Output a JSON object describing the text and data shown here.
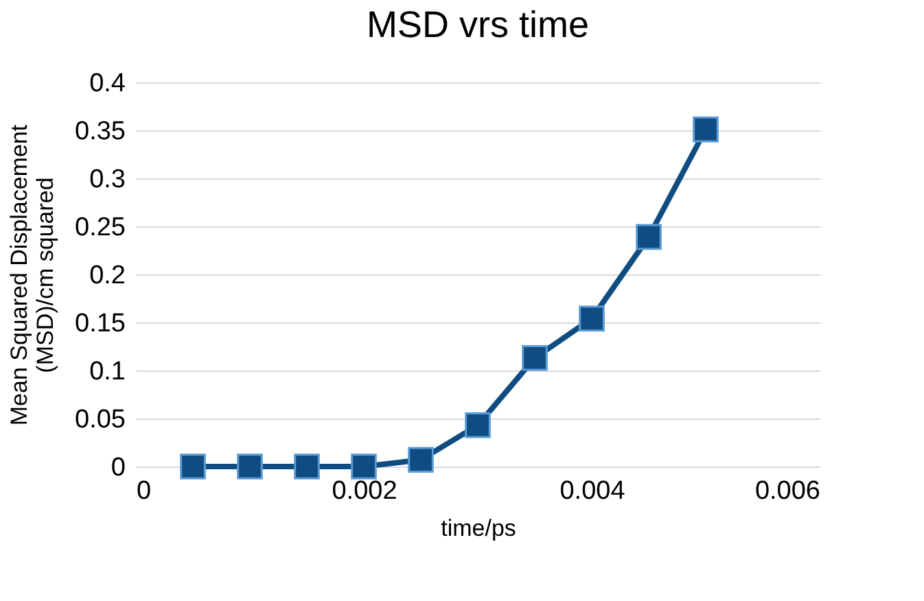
{
  "chart_data": {
    "type": "line",
    "title": "MSD vrs time",
    "xlabel": "time/ps",
    "ylabel": "Mean Squared Displacement\n(MSD)/cm squared",
    "x": [
      0.0005,
      0.001,
      0.0015,
      0.002,
      0.0025,
      0.003,
      0.0035,
      0.004,
      0.0045,
      0.005
    ],
    "series": [
      {
        "color": "#0f4c81",
        "values": [
          0,
          0,
          0,
          0,
          0.007,
          0.043,
          0.113,
          0.154,
          0.239,
          0.351
        ]
      }
    ],
    "xlim": [
      0,
      0.006
    ],
    "xticks": [
      0,
      0.002,
      0.004,
      0.006
    ],
    "ylim": [
      0,
      0.4
    ],
    "yticks": [
      0,
      0.05,
      0.1,
      0.15,
      0.2,
      0.25,
      0.3,
      0.35,
      0.4
    ],
    "grid": "y",
    "marker": "square",
    "line_style": "solid"
  }
}
